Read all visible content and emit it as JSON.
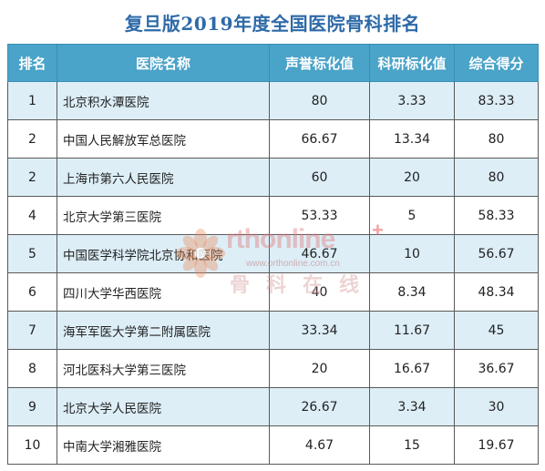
{
  "title": "复旦版2019年度全国医院骨科排名",
  "table": {
    "headers": {
      "rank": "排名",
      "hospital": "医院名称",
      "reputation": "声誉标化值",
      "research": "科研标化值",
      "total": "综合得分"
    },
    "rows": [
      {
        "rank": "1",
        "hospital": "北京积水潭医院",
        "reputation": "80",
        "research": "3.33",
        "total": "83.33",
        "shaded": true
      },
      {
        "rank": "2",
        "hospital": "中国人民解放军总医院",
        "reputation": "66.67",
        "research": "13.34",
        "total": "80",
        "shaded": false
      },
      {
        "rank": "2",
        "hospital": "上海市第六人民医院",
        "reputation": "60",
        "research": "20",
        "total": "80",
        "shaded": true
      },
      {
        "rank": "4",
        "hospital": "北京大学第三医院",
        "reputation": "53.33",
        "research": "5",
        "total": "58.33",
        "shaded": false
      },
      {
        "rank": "5",
        "hospital": "中国医学科学院北京协和医院",
        "reputation": "46.67",
        "research": "10",
        "total": "56.67",
        "shaded": true
      },
      {
        "rank": "6",
        "hospital": "四川大学华西医院",
        "reputation": "40",
        "research": "8.34",
        "total": "48.34",
        "shaded": false
      },
      {
        "rank": "7",
        "hospital": "海军军医大学第二附属医院",
        "reputation": "33.34",
        "research": "11.67",
        "total": "45",
        "shaded": true
      },
      {
        "rank": "8",
        "hospital": "河北医科大学第三医院",
        "reputation": "20",
        "research": "16.67",
        "total": "36.67",
        "shaded": false
      },
      {
        "rank": "9",
        "hospital": "北京大学人民医院",
        "reputation": "26.67",
        "research": "3.34",
        "total": "30",
        "shaded": true
      },
      {
        "rank": "10",
        "hospital": "中南大学湘雅医院",
        "reputation": "4.67",
        "research": "15",
        "total": "19.67",
        "shaded": false
      }
    ]
  },
  "watermark": {
    "brand": "rthonline",
    "plus": "+",
    "url": "www.orthonline.com.cn",
    "cn": "骨科在线"
  },
  "colors": {
    "title": "#2e6aa8",
    "header_bg": "#4aa3c8",
    "header_text": "#ffffff",
    "row_shade": "#ddeef7",
    "grid": "#5a5a5a"
  }
}
